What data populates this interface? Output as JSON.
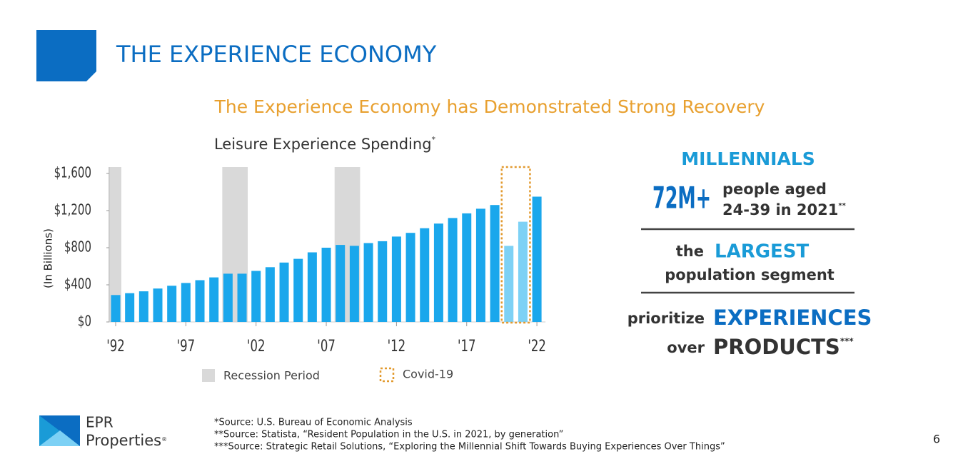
{
  "header": {
    "title": "THE EXPERIENCE ECONOMY"
  },
  "subtitle": "The Experience Economy has Demonstrated Strong Recovery",
  "chart_data": {
    "type": "bar",
    "title": "Leisure Experience Spending",
    "title_mark": "*",
    "y_label": "(In Billions)",
    "categories": [
      "'92",
      null,
      null,
      null,
      null,
      "'97",
      null,
      null,
      null,
      null,
      "'02",
      null,
      null,
      null,
      null,
      "'07",
      null,
      null,
      null,
      null,
      "'12",
      null,
      null,
      null,
      null,
      "'17",
      null,
      null,
      null,
      null,
      "'22"
    ],
    "values": [
      290,
      310,
      330,
      360,
      390,
      420,
      450,
      480,
      520,
      520,
      550,
      590,
      640,
      680,
      750,
      800,
      830,
      820,
      850,
      870,
      920,
      960,
      1010,
      1060,
      1120,
      1170,
      1220,
      1260,
      820,
      1080,
      1350
    ],
    "color": "#1aa7ec",
    "highlight_color": "#7dd1f5",
    "highlight": [
      28,
      29
    ],
    "recessions": [
      [
        0,
        0
      ],
      [
        8,
        9
      ],
      [
        16,
        17
      ]
    ],
    "ylim": [
      0,
      1600
    ],
    "yticks": [
      {
        "value": 0,
        "label": "$0"
      },
      {
        "value": 400,
        "label": "$400"
      },
      {
        "value": 800,
        "label": "$800"
      },
      {
        "value": 1200,
        "label": "$1,200"
      },
      {
        "value": 1600,
        "label": "$1,600"
      }
    ],
    "legend": [
      {
        "label": "Recession Period",
        "color": "#d9d9d9"
      },
      {
        "label": "Covid-19",
        "color": "#e29a2f"
      }
    ]
  },
  "panel": {
    "heading": "MILLENNIALS",
    "stat": "72M+",
    "stat_line1": "people aged",
    "stat_line2": "24-39 in 2021",
    "stat_mark": "**",
    "the": "the",
    "largest": "LARGEST",
    "segment": "population segment",
    "prioritize": "prioritize",
    "experiences": "EXPERIENCES",
    "over": "over",
    "products": "PRODUCTS",
    "products_mark": "***"
  },
  "footnotes": [
    "*Source: U.S. Bureau of Economic Analysis",
    "**Source: Statista, “Resident Population in the U.S. in 2021, by generation”",
    "***Source: Strategic Retail Solutions, “Exploring the Millennial Shift Towards Buying Experiences Over Things”"
  ],
  "logo": {
    "name": "EPR",
    "sub": "Properties",
    "mark": "®"
  },
  "page_number": "6"
}
